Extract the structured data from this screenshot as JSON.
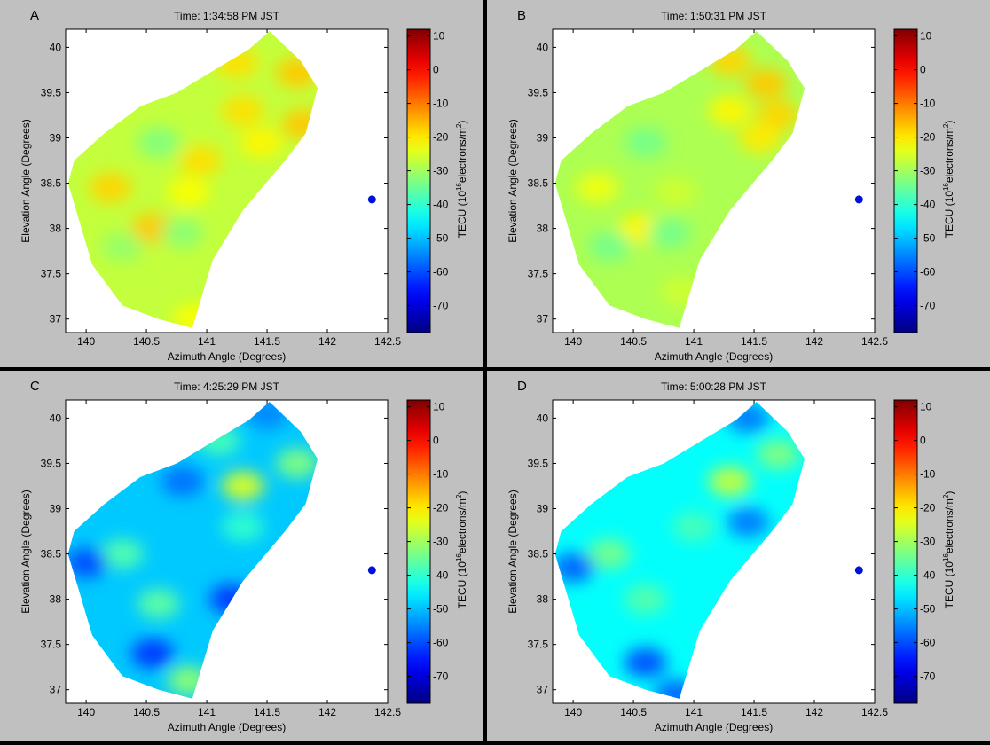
{
  "chart_data": [
    {
      "type": "heatmap",
      "panel_label": "A",
      "title": "Time: 1:34:58 PM JST",
      "xlabel": "Azimuth Angle (Degrees)",
      "ylabel": "Elevation Angle (Degrees)",
      "xlim": [
        139.83,
        142.5
      ],
      "ylim": [
        36.85,
        40.2
      ],
      "xticks": [
        "140",
        "140.5",
        "141",
        "141.5",
        "142",
        "142.5"
      ],
      "yticks": [
        "37",
        "37.5",
        "38",
        "38.5",
        "39",
        "39.5",
        "40"
      ],
      "colorbar": {
        "label_prefix": "TECU (10",
        "label_exp": "16",
        "label_mid": "electrons/m",
        "label_exp2": "2",
        "label_suffix": ")",
        "range": [
          -78,
          12
        ],
        "ticks": [
          "10",
          "0",
          "-10",
          "-20",
          "-30",
          "-40",
          "-50",
          "-60",
          "-70"
        ]
      },
      "marker": {
        "x": 142.37,
        "y": 38.32
      },
      "base_tec": -27,
      "features": [
        {
          "x": 141.25,
          "y": 39.83,
          "tec": -19
        },
        {
          "x": 141.75,
          "y": 39.72,
          "tec": -17
        },
        {
          "x": 141.8,
          "y": 39.15,
          "tec": -17
        },
        {
          "x": 141.3,
          "y": 39.3,
          "tec": -19
        },
        {
          "x": 141.45,
          "y": 38.95,
          "tec": -21
        },
        {
          "x": 140.95,
          "y": 38.75,
          "tec": -19
        },
        {
          "x": 140.2,
          "y": 38.45,
          "tec": -18
        },
        {
          "x": 140.55,
          "y": 38.0,
          "tec": -17
        },
        {
          "x": 140.85,
          "y": 38.4,
          "tec": -22
        },
        {
          "x": 140.6,
          "y": 38.95,
          "tec": -33
        },
        {
          "x": 140.8,
          "y": 37.95,
          "tec": -32
        },
        {
          "x": 140.3,
          "y": 37.8,
          "tec": -31
        },
        {
          "x": 140.9,
          "y": 37.0,
          "tec": -22
        }
      ]
    },
    {
      "type": "heatmap",
      "panel_label": "B",
      "title": "Time: 1:50:31 PM JST",
      "xlabel": "Azimuth Angle (Degrees)",
      "ylabel": "Elevation Angle (Degrees)",
      "xlim": [
        139.83,
        142.5
      ],
      "ylim": [
        36.85,
        40.2
      ],
      "xticks": [
        "140",
        "140.5",
        "141",
        "141.5",
        "142",
        "142.5"
      ],
      "yticks": [
        "37",
        "37.5",
        "38",
        "38.5",
        "39",
        "39.5",
        "40"
      ],
      "colorbar": {
        "label_prefix": "TECU (10",
        "label_exp": "16",
        "label_mid": "electrons/m",
        "label_exp2": "2",
        "label_suffix": ")",
        "range": [
          -78,
          12
        ],
        "ticks": [
          "10",
          "0",
          "-10",
          "-20",
          "-30",
          "-40",
          "-50",
          "-60",
          "-70"
        ]
      },
      "marker": {
        "x": 142.37,
        "y": 38.32
      },
      "base_tec": -29,
      "features": [
        {
          "x": 141.3,
          "y": 39.85,
          "tec": -18
        },
        {
          "x": 141.6,
          "y": 39.6,
          "tec": -17
        },
        {
          "x": 141.7,
          "y": 39.25,
          "tec": -18
        },
        {
          "x": 141.55,
          "y": 39.0,
          "tec": -20
        },
        {
          "x": 141.3,
          "y": 39.3,
          "tec": -21
        },
        {
          "x": 140.2,
          "y": 38.45,
          "tec": -23
        },
        {
          "x": 140.55,
          "y": 38.0,
          "tec": -21
        },
        {
          "x": 140.85,
          "y": 38.4,
          "tec": -26
        },
        {
          "x": 140.6,
          "y": 38.95,
          "tec": -34
        },
        {
          "x": 140.8,
          "y": 37.95,
          "tec": -34
        },
        {
          "x": 140.3,
          "y": 37.8,
          "tec": -34
        },
        {
          "x": 140.9,
          "y": 37.3,
          "tec": -26
        }
      ]
    },
    {
      "type": "heatmap",
      "panel_label": "C",
      "title": "Time: 4:25:29 PM JST",
      "xlabel": "Azimuth Angle (Degrees)",
      "ylabel": "Elevation Angle (Degrees)",
      "xlim": [
        139.83,
        142.5
      ],
      "ylim": [
        36.85,
        40.2
      ],
      "xticks": [
        "140",
        "140.5",
        "141",
        "141.5",
        "142",
        "142.5"
      ],
      "yticks": [
        "37",
        "37.5",
        "38",
        "38.5",
        "39",
        "39.5",
        "40"
      ],
      "colorbar": {
        "label_prefix": "TECU (10",
        "label_exp": "16",
        "label_mid": "electrons/m",
        "label_exp2": "2",
        "label_suffix": ")",
        "range": [
          -78,
          12
        ],
        "ticks": [
          "10",
          "0",
          "-10",
          "-20",
          "-30",
          "-40",
          "-50",
          "-60",
          "-70"
        ]
      },
      "marker": {
        "x": 142.37,
        "y": 38.32
      },
      "base_tec": -49,
      "features": [
        {
          "x": 141.3,
          "y": 39.25,
          "tec": -25
        },
        {
          "x": 141.75,
          "y": 39.5,
          "tec": -33
        },
        {
          "x": 141.1,
          "y": 39.75,
          "tec": -38
        },
        {
          "x": 140.3,
          "y": 38.5,
          "tec": -37
        },
        {
          "x": 140.6,
          "y": 37.95,
          "tec": -36
        },
        {
          "x": 140.85,
          "y": 37.1,
          "tec": -32
        },
        {
          "x": 141.3,
          "y": 38.8,
          "tec": -40
        },
        {
          "x": 140.0,
          "y": 38.4,
          "tec": -60
        },
        {
          "x": 140.55,
          "y": 37.4,
          "tec": -62
        },
        {
          "x": 141.2,
          "y": 38.0,
          "tec": -62
        },
        {
          "x": 140.8,
          "y": 39.3,
          "tec": -57
        },
        {
          "x": 141.5,
          "y": 40.05,
          "tec": -55
        }
      ]
    },
    {
      "type": "heatmap",
      "panel_label": "D",
      "title": "Time: 5:00:28 PM JST",
      "xlabel": "Azimuth Angle (Degrees)",
      "ylabel": "Elevation Angle (Degrees)",
      "xlim": [
        139.83,
        142.5
      ],
      "ylim": [
        36.85,
        40.2
      ],
      "xticks": [
        "140",
        "140.5",
        "141",
        "141.5",
        "142",
        "142.5"
      ],
      "yticks": [
        "37",
        "37.5",
        "38",
        "38.5",
        "39",
        "39.5",
        "40"
      ],
      "colorbar": {
        "label_prefix": "TECU (10",
        "label_exp": "16",
        "label_mid": "electrons/m",
        "label_exp2": "2",
        "label_suffix": ")",
        "range": [
          -78,
          12
        ],
        "ticks": [
          "10",
          "0",
          "-10",
          "-20",
          "-30",
          "-40",
          "-50",
          "-60",
          "-70"
        ]
      },
      "marker": {
        "x": 142.37,
        "y": 38.32
      },
      "base_tec": -44,
      "features": [
        {
          "x": 141.3,
          "y": 39.3,
          "tec": -27
        },
        {
          "x": 141.7,
          "y": 39.6,
          "tec": -33
        },
        {
          "x": 140.3,
          "y": 38.5,
          "tec": -34
        },
        {
          "x": 140.6,
          "y": 38.0,
          "tec": -37
        },
        {
          "x": 141.0,
          "y": 38.8,
          "tec": -38
        },
        {
          "x": 141.45,
          "y": 40.0,
          "tec": -56
        },
        {
          "x": 141.45,
          "y": 38.85,
          "tec": -56
        },
        {
          "x": 140.0,
          "y": 38.35,
          "tec": -58
        },
        {
          "x": 140.6,
          "y": 37.3,
          "tec": -60
        },
        {
          "x": 140.85,
          "y": 36.95,
          "tec": -58
        }
      ]
    }
  ],
  "coverage_polygon": [
    [
      139.85,
      38.5
    ],
    [
      139.9,
      38.75
    ],
    [
      140.15,
      39.05
    ],
    [
      140.45,
      39.35
    ],
    [
      140.75,
      39.5
    ],
    [
      141.1,
      39.78
    ],
    [
      141.35,
      39.98
    ],
    [
      141.52,
      40.18
    ],
    [
      141.78,
      39.85
    ],
    [
      141.92,
      39.55
    ],
    [
      141.82,
      39.05
    ],
    [
      141.65,
      38.75
    ],
    [
      141.3,
      38.2
    ],
    [
      141.05,
      37.65
    ],
    [
      140.88,
      36.9
    ],
    [
      140.6,
      37.0
    ],
    [
      140.3,
      37.15
    ],
    [
      140.05,
      37.6
    ]
  ]
}
